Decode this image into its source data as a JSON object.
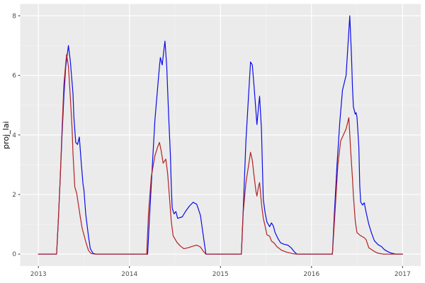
{
  "chart_data": {
    "type": "line",
    "title": "",
    "xlabel": "",
    "ylabel": "proj_lai",
    "legend": "none",
    "grid": "on",
    "xlim": [
      2012.8,
      2017.2
    ],
    "ylim": [
      -0.4,
      8.4
    ],
    "x_ticks": [
      2013,
      2014,
      2015,
      2016,
      2017
    ],
    "x_tick_labels": [
      "2013",
      "2014",
      "2015",
      "2016",
      "2017"
    ],
    "x_minor_ticks": [
      2013.5,
      2014.5,
      2015.5,
      2016.5
    ],
    "y_ticks": [
      0,
      2,
      4,
      6,
      8
    ],
    "y_tick_labels": [
      "0",
      "2",
      "4",
      "6",
      "8"
    ],
    "y_minor_ticks": [
      1,
      3,
      5,
      7
    ],
    "colors": {
      "panel_background": "#EBEBEB",
      "grid_major": "#FFFFFF",
      "grid_minor": "#F5F5F5",
      "axis_text": "#4D4D4D",
      "axis_title": "#000000",
      "tick_mark": "#333333",
      "series_blue": "#0B0BE8",
      "series_red": "#B22222"
    },
    "series": [
      {
        "name": "blue-projection",
        "color_key": "series_blue",
        "points": [
          [
            2013.0,
            0
          ],
          [
            2013.2,
            0
          ],
          [
            2013.22,
            1.2
          ],
          [
            2013.24,
            2.6
          ],
          [
            2013.26,
            4.0
          ],
          [
            2013.28,
            5.3
          ],
          [
            2013.3,
            6.3
          ],
          [
            2013.33,
            7.0
          ],
          [
            2013.35,
            6.5
          ],
          [
            2013.38,
            5.4
          ],
          [
            2013.39,
            4.6
          ],
          [
            2013.41,
            3.75
          ],
          [
            2013.43,
            3.68
          ],
          [
            2013.45,
            3.93
          ],
          [
            2013.47,
            3.1
          ],
          [
            2013.49,
            2.35
          ],
          [
            2013.5,
            2.15
          ],
          [
            2013.52,
            1.35
          ],
          [
            2013.55,
            0.6
          ],
          [
            2013.57,
            0.18
          ],
          [
            2013.6,
            0.03
          ],
          [
            2013.63,
            0
          ],
          [
            2014.2,
            0
          ],
          [
            2014.22,
            1.2
          ],
          [
            2014.25,
            2.9
          ],
          [
            2014.28,
            4.5
          ],
          [
            2014.31,
            5.6
          ],
          [
            2014.33,
            6.3
          ],
          [
            2014.34,
            6.6
          ],
          [
            2014.36,
            6.35
          ],
          [
            2014.38,
            6.9
          ],
          [
            2014.39,
            7.15
          ],
          [
            2014.41,
            6.3
          ],
          [
            2014.43,
            4.7
          ],
          [
            2014.45,
            3.3
          ],
          [
            2014.46,
            2.3
          ],
          [
            2014.47,
            1.55
          ],
          [
            2014.49,
            1.35
          ],
          [
            2014.51,
            1.43
          ],
          [
            2014.53,
            1.2
          ],
          [
            2014.58,
            1.25
          ],
          [
            2014.62,
            1.45
          ],
          [
            2014.66,
            1.62
          ],
          [
            2014.7,
            1.74
          ],
          [
            2014.74,
            1.67
          ],
          [
            2014.78,
            1.3
          ],
          [
            2014.81,
            0.65
          ],
          [
            2014.84,
            0
          ],
          [
            2015.23,
            0
          ],
          [
            2015.25,
            1.5
          ],
          [
            2015.28,
            3.8
          ],
          [
            2015.31,
            5.4
          ],
          [
            2015.33,
            6.45
          ],
          [
            2015.35,
            6.35
          ],
          [
            2015.37,
            5.6
          ],
          [
            2015.4,
            4.35
          ],
          [
            2015.42,
            5.0
          ],
          [
            2015.43,
            5.3
          ],
          [
            2015.45,
            4.2
          ],
          [
            2015.46,
            3.0
          ],
          [
            2015.47,
            1.85
          ],
          [
            2015.49,
            1.4
          ],
          [
            2015.51,
            1.08
          ],
          [
            2015.54,
            0.92
          ],
          [
            2015.56,
            1.05
          ],
          [
            2015.58,
            0.95
          ],
          [
            2015.6,
            0.72
          ],
          [
            2015.63,
            0.53
          ],
          [
            2015.66,
            0.38
          ],
          [
            2015.7,
            0.33
          ],
          [
            2015.74,
            0.3
          ],
          [
            2015.78,
            0.2
          ],
          [
            2015.81,
            0.08
          ],
          [
            2015.84,
            0
          ],
          [
            2016.23,
            0
          ],
          [
            2016.25,
            1.3
          ],
          [
            2016.28,
            3.0
          ],
          [
            2016.31,
            4.4
          ],
          [
            2016.34,
            5.5
          ],
          [
            2016.38,
            6.0
          ],
          [
            2016.4,
            7.0
          ],
          [
            2016.42,
            8.0
          ],
          [
            2016.44,
            6.6
          ],
          [
            2016.45,
            5.6
          ],
          [
            2016.46,
            4.95
          ],
          [
            2016.48,
            4.7
          ],
          [
            2016.49,
            4.75
          ],
          [
            2016.5,
            4.6
          ],
          [
            2016.52,
            3.6
          ],
          [
            2016.53,
            2.3
          ],
          [
            2016.54,
            1.75
          ],
          [
            2016.56,
            1.65
          ],
          [
            2016.58,
            1.72
          ],
          [
            2016.6,
            1.4
          ],
          [
            2016.63,
            1.0
          ],
          [
            2016.66,
            0.7
          ],
          [
            2016.69,
            0.45
          ],
          [
            2016.73,
            0.32
          ],
          [
            2016.77,
            0.25
          ],
          [
            2016.8,
            0.15
          ],
          [
            2016.84,
            0.08
          ],
          [
            2016.88,
            0.03
          ],
          [
            2016.93,
            0
          ],
          [
            2017.0,
            0
          ]
        ]
      },
      {
        "name": "red-projection",
        "color_key": "series_red",
        "points": [
          [
            2013.0,
            0
          ],
          [
            2013.2,
            0
          ],
          [
            2013.22,
            1.2
          ],
          [
            2013.24,
            2.6
          ],
          [
            2013.26,
            4.2
          ],
          [
            2013.28,
            5.7
          ],
          [
            2013.3,
            6.4
          ],
          [
            2013.31,
            6.7
          ],
          [
            2013.33,
            6.3
          ],
          [
            2013.35,
            5.3
          ],
          [
            2013.37,
            4.2
          ],
          [
            2013.38,
            3.4
          ],
          [
            2013.4,
            2.25
          ],
          [
            2013.42,
            2.05
          ],
          [
            2013.44,
            1.65
          ],
          [
            2013.46,
            1.25
          ],
          [
            2013.48,
            0.88
          ],
          [
            2013.52,
            0.42
          ],
          [
            2013.55,
            0.12
          ],
          [
            2013.58,
            0.02
          ],
          [
            2013.62,
            0
          ],
          [
            2014.19,
            0
          ],
          [
            2014.21,
            1.4
          ],
          [
            2014.24,
            2.6
          ],
          [
            2014.28,
            3.3
          ],
          [
            2014.31,
            3.6
          ],
          [
            2014.33,
            3.75
          ],
          [
            2014.35,
            3.45
          ],
          [
            2014.37,
            3.05
          ],
          [
            2014.4,
            3.19
          ],
          [
            2014.42,
            2.7
          ],
          [
            2014.44,
            1.9
          ],
          [
            2014.46,
            1.1
          ],
          [
            2014.48,
            0.62
          ],
          [
            2014.52,
            0.4
          ],
          [
            2014.56,
            0.27
          ],
          [
            2014.6,
            0.18
          ],
          [
            2014.65,
            0.22
          ],
          [
            2014.7,
            0.27
          ],
          [
            2014.74,
            0.3
          ],
          [
            2014.78,
            0.24
          ],
          [
            2014.81,
            0.1
          ],
          [
            2014.84,
            0
          ],
          [
            2015.23,
            0
          ],
          [
            2015.25,
            1.4
          ],
          [
            2015.28,
            2.4
          ],
          [
            2015.31,
            3.0
          ],
          [
            2015.33,
            3.42
          ],
          [
            2015.35,
            3.15
          ],
          [
            2015.37,
            2.6
          ],
          [
            2015.39,
            2.1
          ],
          [
            2015.4,
            1.95
          ],
          [
            2015.42,
            2.3
          ],
          [
            2015.43,
            2.4
          ],
          [
            2015.45,
            1.7
          ],
          [
            2015.47,
            1.2
          ],
          [
            2015.49,
            0.95
          ],
          [
            2015.51,
            0.65
          ],
          [
            2015.54,
            0.6
          ],
          [
            2015.56,
            0.44
          ],
          [
            2015.59,
            0.37
          ],
          [
            2015.62,
            0.25
          ],
          [
            2015.67,
            0.13
          ],
          [
            2015.73,
            0.06
          ],
          [
            2015.8,
            0.01
          ],
          [
            2015.84,
            0
          ],
          [
            2016.23,
            0
          ],
          [
            2016.26,
            1.5
          ],
          [
            2016.29,
            3.0
          ],
          [
            2016.32,
            3.8
          ],
          [
            2016.35,
            4.0
          ],
          [
            2016.38,
            4.2
          ],
          [
            2016.41,
            4.58
          ],
          [
            2016.43,
            3.5
          ],
          [
            2016.45,
            2.54
          ],
          [
            2016.46,
            1.98
          ],
          [
            2016.48,
            1.12
          ],
          [
            2016.5,
            0.72
          ],
          [
            2016.53,
            0.64
          ],
          [
            2016.55,
            0.6
          ],
          [
            2016.58,
            0.55
          ],
          [
            2016.6,
            0.48
          ],
          [
            2016.63,
            0.21
          ],
          [
            2016.69,
            0.09
          ],
          [
            2016.73,
            0.03
          ],
          [
            2016.79,
            0
          ],
          [
            2017.0,
            0
          ]
        ]
      }
    ]
  }
}
